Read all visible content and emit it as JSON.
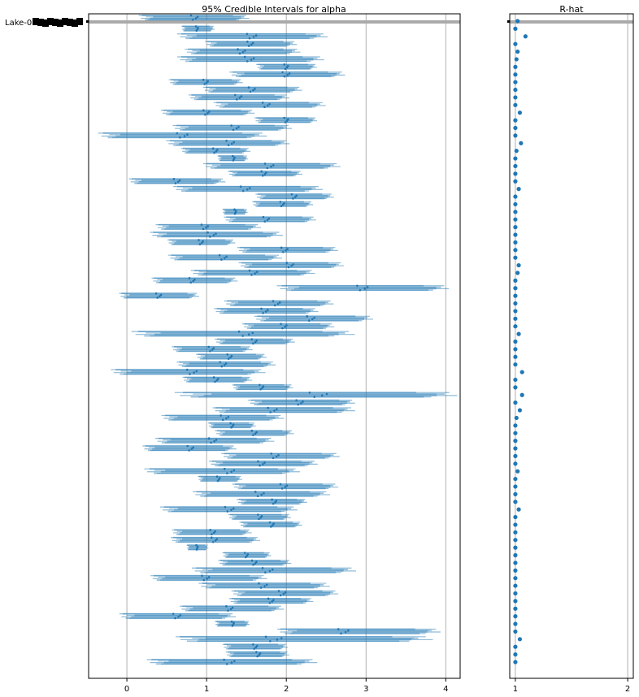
{
  "chart_data": [
    {
      "type": "forest",
      "title": "95% Credible Intervals for alpha",
      "xlim": [
        -0.48,
        4.18
      ],
      "xticks": [
        0,
        1,
        2,
        3,
        4
      ],
      "grid": "vertical",
      "y_label_text": "Lake-0",
      "highlight_row": 0,
      "colors": {
        "interval": "#1f77b4",
        "grid": "#b0b0b0",
        "highlight": "#aaaaaa"
      },
      "rows": [
        {
          "mean": 0.85,
          "low": 0.2,
          "high": 1.47
        },
        {
          "mean": 0.88,
          "low": 0.7,
          "high": 1.08
        },
        {
          "mean": 1.57,
          "low": 0.7,
          "high": 2.43
        },
        {
          "mean": 1.55,
          "low": 1.02,
          "high": 2.08
        },
        {
          "mean": 1.44,
          "low": 0.78,
          "high": 2.11
        },
        {
          "mean": 1.54,
          "low": 0.7,
          "high": 2.39
        },
        {
          "mean": 2.0,
          "low": 1.65,
          "high": 2.35
        },
        {
          "mean": 2.0,
          "low": 1.34,
          "high": 2.67
        },
        {
          "mean": 0.99,
          "low": 0.56,
          "high": 1.41
        },
        {
          "mean": 1.57,
          "low": 1.0,
          "high": 2.14
        },
        {
          "mean": 1.4,
          "low": 0.82,
          "high": 1.98
        },
        {
          "mean": 1.75,
          "low": 1.14,
          "high": 2.43
        },
        {
          "mean": 1.0,
          "low": 0.47,
          "high": 1.55
        },
        {
          "mean": 2.0,
          "low": 1.63,
          "high": 2.35
        },
        {
          "mean": 1.36,
          "low": 0.63,
          "high": 2.0
        },
        {
          "mean": 0.7,
          "low": -0.28,
          "high": 1.66
        },
        {
          "mean": 1.3,
          "low": 0.55,
          "high": 1.97
        },
        {
          "mean": 1.11,
          "low": 0.71,
          "high": 1.51
        },
        {
          "mean": 1.34,
          "low": 1.15,
          "high": 1.5
        },
        {
          "mean": 1.79,
          "low": 1.02,
          "high": 2.6
        },
        {
          "mean": 1.72,
          "low": 1.3,
          "high": 2.16
        },
        {
          "mean": 0.63,
          "low": 0.07,
          "high": 1.18
        },
        {
          "mean": 1.49,
          "low": 0.65,
          "high": 2.37
        },
        {
          "mean": 2.1,
          "low": 1.65,
          "high": 2.55
        },
        {
          "mean": 1.95,
          "low": 1.6,
          "high": 2.3
        },
        {
          "mean": 1.36,
          "low": 1.21,
          "high": 1.5
        },
        {
          "mean": 1.75,
          "low": 1.26,
          "high": 2.32
        },
        {
          "mean": 0.98,
          "low": 0.41,
          "high": 1.62
        },
        {
          "mean": 1.07,
          "low": 0.35,
          "high": 1.88
        },
        {
          "mean": 0.93,
          "low": 0.54,
          "high": 1.32
        },
        {
          "mean": 1.98,
          "low": 1.43,
          "high": 2.59
        },
        {
          "mean": 1.21,
          "low": 0.57,
          "high": 1.88
        },
        {
          "mean": 2.05,
          "low": 1.45,
          "high": 2.66
        },
        {
          "mean": 1.59,
          "low": 0.86,
          "high": 2.29
        },
        {
          "mean": 0.82,
          "low": 0.35,
          "high": 1.34
        },
        {
          "mean": 2.96,
          "low": 1.96,
          "high": 3.94
        },
        {
          "mean": 0.4,
          "low": -0.06,
          "high": 0.86
        },
        {
          "mean": 1.88,
          "low": 1.27,
          "high": 2.53
        },
        {
          "mean": 1.73,
          "low": 1.14,
          "high": 2.34
        },
        {
          "mean": 2.31,
          "low": 1.65,
          "high": 3.02
        },
        {
          "mean": 1.97,
          "low": 1.49,
          "high": 2.55
        },
        {
          "mean": 1.5,
          "low": 0.16,
          "high": 2.73
        },
        {
          "mean": 1.6,
          "low": 1.14,
          "high": 2.06
        },
        {
          "mean": 1.06,
          "low": 0.6,
          "high": 1.53
        },
        {
          "mean": 1.29,
          "low": 0.9,
          "high": 1.71
        },
        {
          "mean": 1.21,
          "low": 0.67,
          "high": 1.81
        },
        {
          "mean": 0.82,
          "low": -0.13,
          "high": 1.65
        },
        {
          "mean": 1.12,
          "low": 0.73,
          "high": 1.53
        },
        {
          "mean": 1.69,
          "low": 1.35,
          "high": 2.05
        },
        {
          "mean": 2.41,
          "low": 0.73,
          "high": 3.98
        },
        {
          "mean": 2.17,
          "low": 1.57,
          "high": 2.8
        },
        {
          "mean": 1.83,
          "low": 1.14,
          "high": 2.78
        },
        {
          "mean": 1.23,
          "low": 0.49,
          "high": 1.9
        },
        {
          "mean": 1.32,
          "low": 1.04,
          "high": 1.59
        },
        {
          "mean": 1.6,
          "low": 1.14,
          "high": 2.05
        },
        {
          "mean": 1.08,
          "low": 0.41,
          "high": 1.78
        },
        {
          "mean": 0.8,
          "low": 0.24,
          "high": 1.32
        },
        {
          "mean": 1.86,
          "low": 1.24,
          "high": 2.6
        },
        {
          "mean": 1.69,
          "low": 1.08,
          "high": 2.33
        },
        {
          "mean": 1.29,
          "low": 0.29,
          "high": 2.08
        },
        {
          "mean": 1.15,
          "low": 0.91,
          "high": 1.42
        },
        {
          "mean": 1.97,
          "low": 1.37,
          "high": 2.59
        },
        {
          "mean": 1.67,
          "low": 0.89,
          "high": 2.47
        },
        {
          "mean": 1.85,
          "low": 1.41,
          "high": 2.22
        },
        {
          "mean": 1.29,
          "low": 0.48,
          "high": 2.06
        },
        {
          "mean": 1.67,
          "low": 1.3,
          "high": 2.02
        },
        {
          "mean": 1.82,
          "low": 1.44,
          "high": 2.16
        },
        {
          "mean": 1.08,
          "low": 0.6,
          "high": 1.52
        },
        {
          "mean": 1.1,
          "low": 0.59,
          "high": 1.62
        },
        {
          "mean": 0.88,
          "low": 0.76,
          "high": 1.01
        },
        {
          "mean": 1.5,
          "low": 1.22,
          "high": 1.78
        },
        {
          "mean": 1.6,
          "low": 1.18,
          "high": 2.02
        },
        {
          "mean": 1.77,
          "low": 0.89,
          "high": 2.78
        },
        {
          "mean": 0.99,
          "low": 0.35,
          "high": 1.69
        },
        {
          "mean": 1.71,
          "low": 0.96,
          "high": 2.47
        },
        {
          "mean": 1.95,
          "low": 1.36,
          "high": 2.59
        },
        {
          "mean": 1.81,
          "low": 1.32,
          "high": 2.29
        },
        {
          "mean": 1.29,
          "low": 0.71,
          "high": 1.91
        },
        {
          "mean": 0.63,
          "low": -0.04,
          "high": 1.3
        },
        {
          "mean": 1.33,
          "low": 1.12,
          "high": 1.52
        },
        {
          "mean": 2.72,
          "low": 1.96,
          "high": 3.84
        },
        {
          "mean": 1.85,
          "low": 0.73,
          "high": 3.69
        },
        {
          "mean": 1.61,
          "low": 1.23,
          "high": 1.98
        },
        {
          "mean": 1.65,
          "low": 1.27,
          "high": 2.0
        },
        {
          "mean": 1.29,
          "low": 0.33,
          "high": 2.29
        }
      ]
    },
    {
      "type": "scatter",
      "title": "R-hat",
      "xlim": [
        0.95,
        2.05
      ],
      "xticks": [
        1,
        2
      ],
      "grid": "vertical",
      "values": [
        1.02,
        1.0,
        1.09,
        1.0,
        1.02,
        1.01,
        1.0,
        1.0,
        1.0,
        1.0,
        1.0,
        1.0,
        1.04,
        1.0,
        1.0,
        1.0,
        1.05,
        1.01,
        1.0,
        1.0,
        1.0,
        1.0,
        1.03,
        1.0,
        1.0,
        1.0,
        1.0,
        1.0,
        1.0,
        1.0,
        1.0,
        1.0,
        1.03,
        1.02,
        1.0,
        1.0,
        1.0,
        1.0,
        1.0,
        1.0,
        1.0,
        1.03,
        1.0,
        1.0,
        1.0,
        1.0,
        1.06,
        1.0,
        1.0,
        1.06,
        1.0,
        1.04,
        1.01,
        1.0,
        1.0,
        1.0,
        1.0,
        1.0,
        1.0,
        1.02,
        1.0,
        1.0,
        1.0,
        1.0,
        1.03,
        1.0,
        1.0,
        1.0,
        1.0,
        1.0,
        1.0,
        1.0,
        1.0,
        1.0,
        1.0,
        1.0,
        1.0,
        1.0,
        1.0,
        1.0,
        1.0,
        1.04,
        1.0,
        1.0,
        1.0
      ]
    }
  ]
}
